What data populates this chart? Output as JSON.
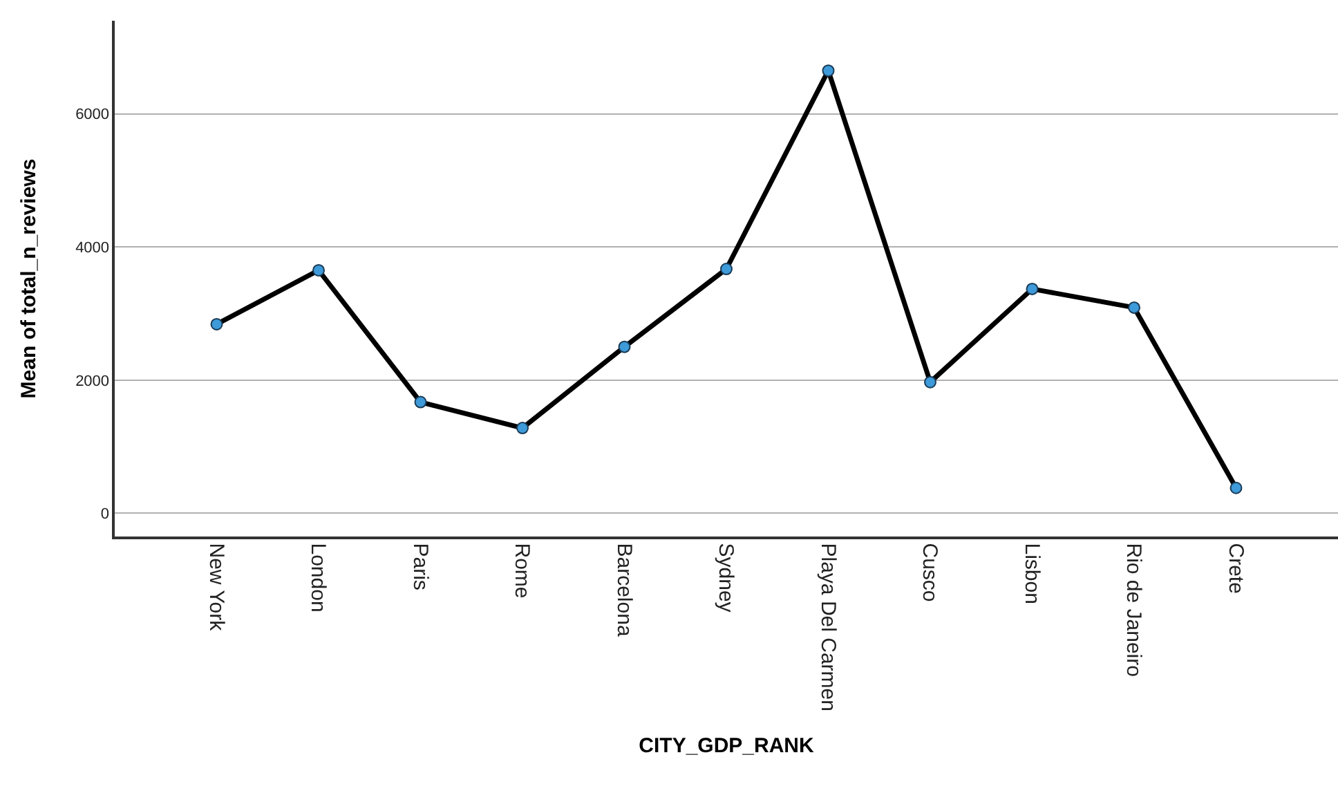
{
  "chart_data": {
    "type": "line",
    "xlabel": "CITY_GDP_RANK",
    "ylabel": "Mean of total_n_reviews",
    "categories": [
      "New York",
      "London",
      "Paris",
      "Rome",
      "Barcelona",
      "Sydney",
      "Playa Del Carmen",
      "Cusco",
      "Lisbon",
      "Rio de Janeiro",
      "Crete"
    ],
    "series": [
      {
        "color": "#000000",
        "values": [
          2840,
          3650,
          1670,
          1280,
          2500,
          3670,
          6650,
          1970,
          3370,
          3090,
          380
        ]
      }
    ],
    "ylim": [
      -350,
      7400
    ],
    "yticks": [
      0,
      2000,
      4000,
      6000
    ],
    "grid": "y",
    "marker": "circle",
    "line_style": "solid",
    "legend": false
  }
}
